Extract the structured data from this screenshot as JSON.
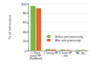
{
  "chart_data": {
    "type": "bar",
    "y_label": "% of emissions",
    "categories": [
      "1. Wood (sawn) HP (Hardboard)",
      "2. Density HP",
      "3. Inside HP rem.",
      "PAC (by-)"
    ],
    "series": [
      {
        "name": "Before joint processing",
        "color": "#7ab648",
        "values": [
          95,
          3,
          2,
          1
        ]
      },
      {
        "name": "After joint processing",
        "color": "#e8632b",
        "values": [
          90,
          2,
          1,
          1
        ]
      }
    ],
    "ylim": [
      0,
      100
    ],
    "yticks": [
      0,
      20,
      40,
      60,
      80,
      100
    ],
    "grid": true,
    "legend": "lower right"
  }
}
